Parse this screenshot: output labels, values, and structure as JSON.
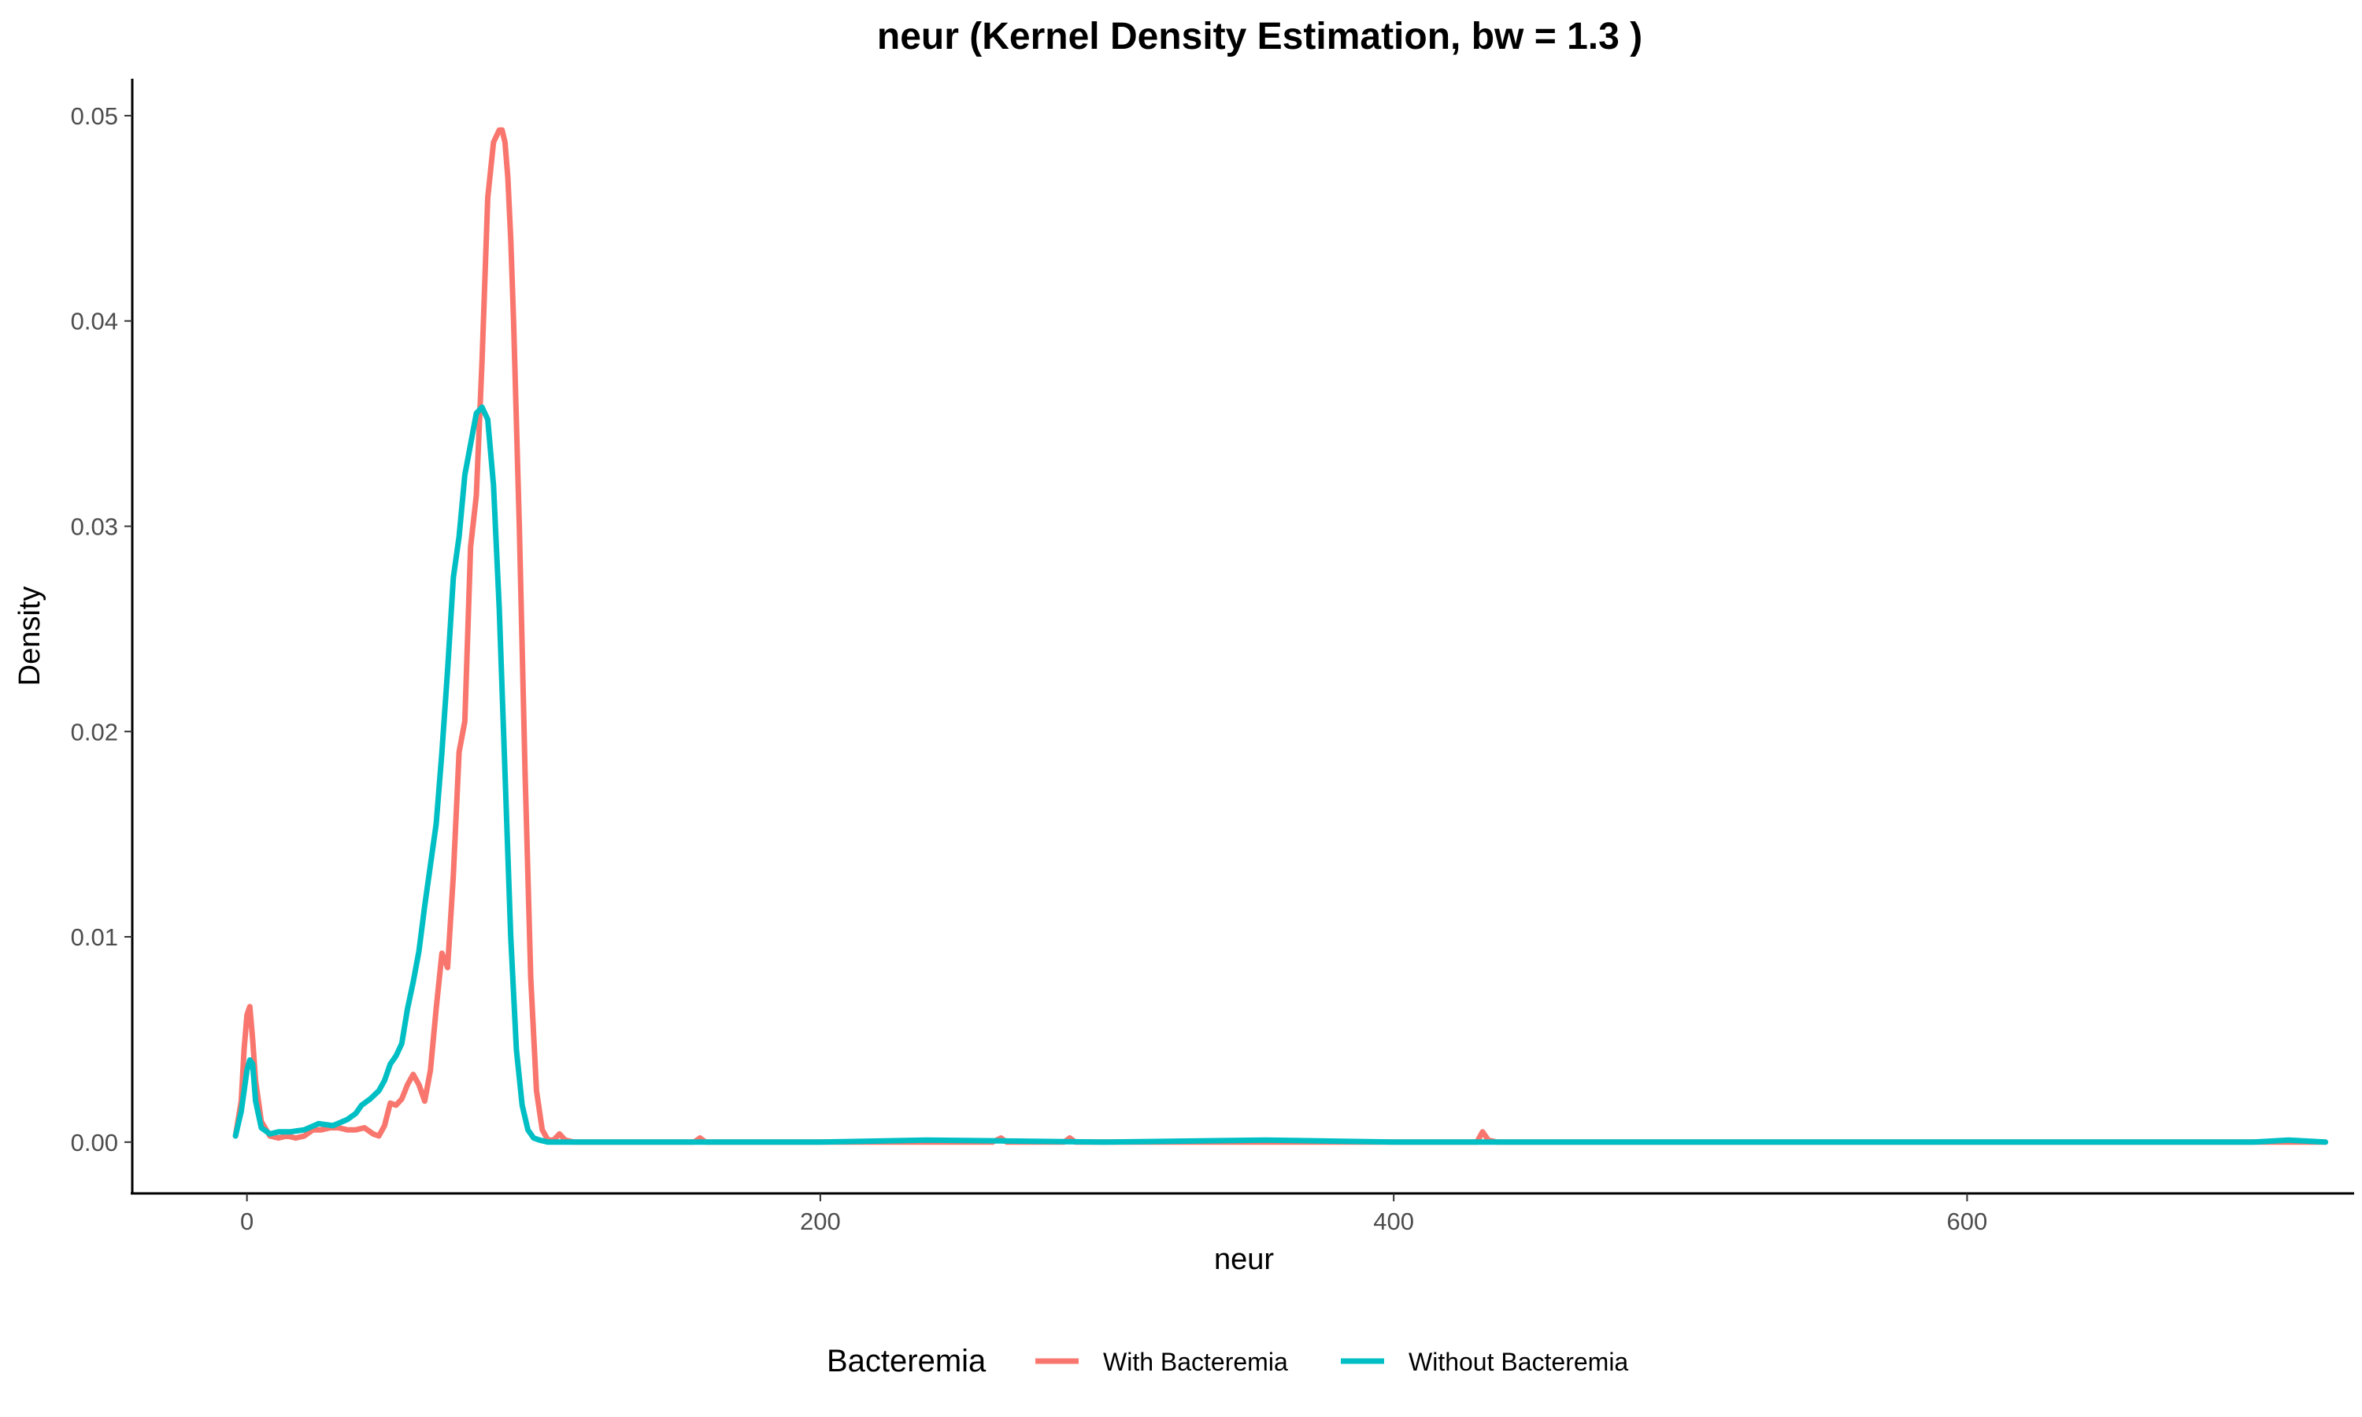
{
  "chart_data": {
    "type": "line",
    "title": "neur (Kernel Density Estimation, bw = 1.3 )",
    "xlabel": "neur",
    "ylabel": "Density",
    "xlim": [
      -40,
      735
    ],
    "ylim": [
      -0.0025,
      0.0518
    ],
    "x_ticks": [
      0,
      200,
      400,
      600
    ],
    "x_tick_labels": [
      "0",
      "200",
      "400",
      "600"
    ],
    "y_ticks": [
      0.0,
      0.01,
      0.02,
      0.03,
      0.04,
      0.05
    ],
    "y_tick_labels": [
      "0.00",
      "0.01",
      "0.02",
      "0.03",
      "0.04",
      "0.05"
    ],
    "grid": false,
    "legend": {
      "title": "Bacteremia",
      "position": "bottom"
    },
    "series": [
      {
        "name": "With Bacteremia",
        "color": "#F8766D",
        "x": [
          -4,
          -2,
          -1,
          0,
          1,
          2,
          3,
          5,
          8,
          11,
          14,
          17,
          20,
          23,
          26,
          29,
          32,
          35,
          38,
          41,
          44,
          46,
          48,
          50,
          52,
          54,
          56,
          58,
          60,
          62,
          64,
          66,
          68,
          70,
          72,
          74,
          76,
          78,
          80,
          82,
          84,
          86,
          88,
          89,
          90,
          91,
          92,
          93,
          95,
          97,
          99,
          101,
          103,
          105,
          107,
          109,
          111,
          114,
          120,
          150,
          156,
          158,
          160,
          165,
          200,
          260,
          263,
          265,
          285,
          287,
          289,
          300,
          350,
          400,
          425,
          429,
          431,
          433,
          436,
          500,
          600,
          700,
          725
        ],
        "y": [
          0.0003,
          0.002,
          0.0045,
          0.0062,
          0.0066,
          0.005,
          0.003,
          0.001,
          0.0003,
          0.0002,
          0.0003,
          0.0002,
          0.0003,
          0.0006,
          0.0006,
          0.0007,
          0.0007,
          0.0006,
          0.0006,
          0.0007,
          0.0004,
          0.0003,
          0.0008,
          0.0019,
          0.0018,
          0.0021,
          0.0028,
          0.0033,
          0.0028,
          0.002,
          0.0035,
          0.0065,
          0.0092,
          0.0085,
          0.013,
          0.019,
          0.0205,
          0.029,
          0.0315,
          0.038,
          0.046,
          0.0487,
          0.0493,
          0.0493,
          0.0487,
          0.047,
          0.044,
          0.04,
          0.03,
          0.018,
          0.008,
          0.0025,
          0.0006,
          0.0001,
          0.0001,
          0.0004,
          0.0001,
          0.0,
          0.0,
          0.0,
          0.0,
          0.0002,
          0.0,
          0.0,
          0.0,
          0.0,
          0.0002,
          0.0,
          0.0,
          0.0002,
          0.0,
          0.0,
          0.0,
          0.0,
          0.0,
          0.0,
          0.0005,
          0.0001,
          0.0,
          0.0,
          0.0,
          0.0,
          0.0
        ]
      },
      {
        "name": "Without Bacteremia",
        "color": "#00BFC4",
        "x": [
          -4,
          -2,
          0,
          1,
          2,
          3,
          5,
          8,
          11,
          15,
          20,
          25,
          30,
          35,
          38,
          40,
          43,
          46,
          48,
          50,
          52,
          54,
          56,
          58,
          60,
          62,
          64,
          66,
          68,
          70,
          72,
          74,
          76,
          78,
          80,
          82,
          84,
          86,
          88,
          90,
          92,
          94,
          96,
          98,
          100,
          102,
          105,
          110,
          150,
          200,
          237,
          300,
          355,
          400,
          500,
          600,
          700,
          712,
          725
        ],
        "y": [
          0.0003,
          0.0015,
          0.0035,
          0.004,
          0.0038,
          0.002,
          0.0007,
          0.0004,
          0.0005,
          0.0005,
          0.0006,
          0.0009,
          0.0008,
          0.0011,
          0.0014,
          0.0018,
          0.0021,
          0.0025,
          0.003,
          0.0038,
          0.0042,
          0.0048,
          0.0065,
          0.0078,
          0.0093,
          0.0115,
          0.0135,
          0.0155,
          0.019,
          0.023,
          0.0275,
          0.0295,
          0.0325,
          0.034,
          0.0355,
          0.0358,
          0.0352,
          0.032,
          0.026,
          0.018,
          0.01,
          0.0045,
          0.0018,
          0.0006,
          0.0002,
          0.0001,
          0.0,
          0.0,
          0.0,
          0.0,
          0.0001,
          0.0,
          0.0001,
          0.0,
          0.0,
          0.0,
          0.0,
          0.0001,
          0.0
        ]
      }
    ]
  }
}
